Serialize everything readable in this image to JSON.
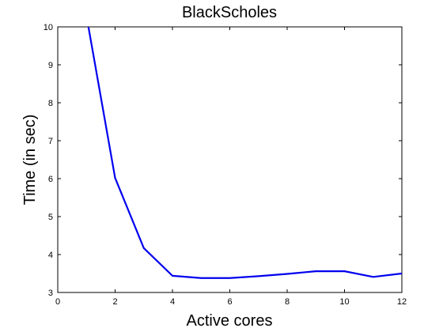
{
  "chart_data": {
    "type": "line",
    "title": "BlackScholes",
    "xlabel": "Active cores",
    "ylabel": "Time (in sec)",
    "xlim": [
      0,
      12
    ],
    "ylim": [
      3,
      10
    ],
    "xticks": [
      0,
      2,
      4,
      6,
      8,
      10,
      12
    ],
    "yticks": [
      3,
      4,
      5,
      6,
      7,
      8,
      9,
      10
    ],
    "grid": false,
    "colors": {
      "line": "#0000ee",
      "axis": "#000000"
    },
    "series": [
      {
        "x": [
          1,
          2,
          3,
          4,
          5,
          6,
          7,
          8,
          9,
          10,
          11,
          12
        ],
        "y": [
          10.3,
          6.02,
          4.17,
          3.44,
          3.38,
          3.38,
          3.43,
          3.49,
          3.56,
          3.56,
          3.41,
          3.5
        ]
      }
    ]
  }
}
